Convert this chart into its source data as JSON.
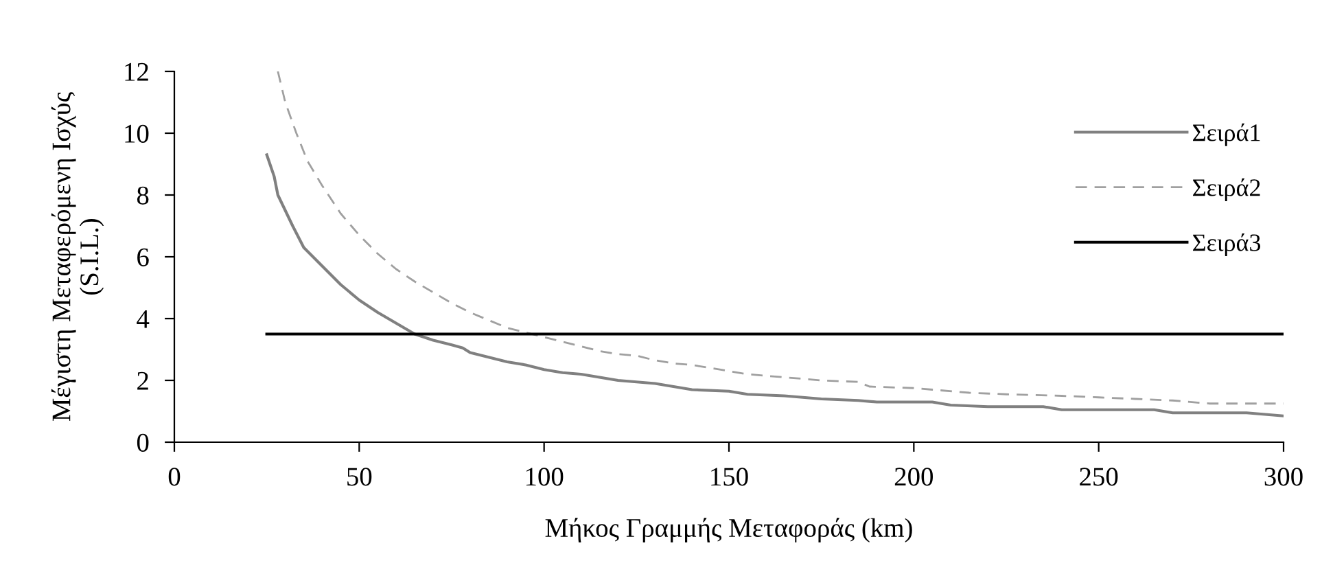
{
  "chart_data": {
    "type": "line",
    "xlabel": "Μήκος Γραμμής Μεταφοράς (km)",
    "ylabel": "Μέγιστη Μεταφερόμενη Ισχύς\n(S.I.L.)",
    "xlim": [
      0,
      300
    ],
    "xticks": [
      0,
      50,
      100,
      150,
      200,
      250,
      300
    ],
    "ylim": [
      0,
      12
    ],
    "yticks": [
      0,
      2,
      4,
      6,
      8,
      10,
      12
    ],
    "grid": false,
    "legend": "top right",
    "marker": "none",
    "series": [
      {
        "name": "Σειρά1",
        "color": "#808080",
        "line_style": "solid",
        "x": [
          25,
          27,
          28,
          30,
          32,
          35,
          40,
          45,
          50,
          55,
          60,
          65,
          70,
          75,
          78,
          80,
          85,
          90,
          95,
          100,
          105,
          110,
          115,
          120,
          125,
          130,
          135,
          140,
          150,
          155,
          165,
          175,
          185,
          190,
          205,
          210,
          220,
          235,
          240,
          265,
          270,
          290,
          300
        ],
        "values": [
          9.3,
          8.6,
          8.0,
          7.5,
          7.0,
          6.3,
          5.7,
          5.1,
          4.6,
          4.2,
          3.85,
          3.5,
          3.3,
          3.15,
          3.05,
          2.9,
          2.75,
          2.6,
          2.5,
          2.35,
          2.25,
          2.2,
          2.1,
          2.0,
          1.95,
          1.9,
          1.8,
          1.7,
          1.65,
          1.55,
          1.5,
          1.4,
          1.35,
          1.3,
          1.3,
          1.2,
          1.15,
          1.15,
          1.05,
          1.05,
          0.95,
          0.95,
          0.85
        ]
      },
      {
        "name": "Σειρά2",
        "color": "#a0a0a0",
        "line_style": "dashed",
        "x": [
          28,
          30,
          33,
          36,
          40,
          45,
          50,
          55,
          60,
          65,
          70,
          75,
          80,
          85,
          90,
          95,
          100,
          105,
          110,
          115,
          120,
          125,
          130,
          135,
          140,
          145,
          150,
          155,
          165,
          175,
          185,
          188,
          200,
          205,
          215,
          225,
          240,
          250,
          260,
          270,
          280,
          300
        ],
        "values": [
          12.0,
          11.0,
          10.0,
          9.1,
          8.3,
          7.4,
          6.7,
          6.1,
          5.6,
          5.2,
          4.85,
          4.5,
          4.2,
          3.95,
          3.7,
          3.55,
          3.4,
          3.25,
          3.1,
          2.95,
          2.85,
          2.8,
          2.65,
          2.55,
          2.5,
          2.4,
          2.3,
          2.2,
          2.1,
          2.0,
          1.95,
          1.8,
          1.75,
          1.7,
          1.6,
          1.55,
          1.5,
          1.45,
          1.4,
          1.35,
          1.25,
          1.25
        ]
      },
      {
        "name": "Σειρά3",
        "color": "#000000",
        "line_style": "solid",
        "x": [
          25,
          300
        ],
        "values": [
          3.5,
          3.5
        ]
      }
    ]
  }
}
